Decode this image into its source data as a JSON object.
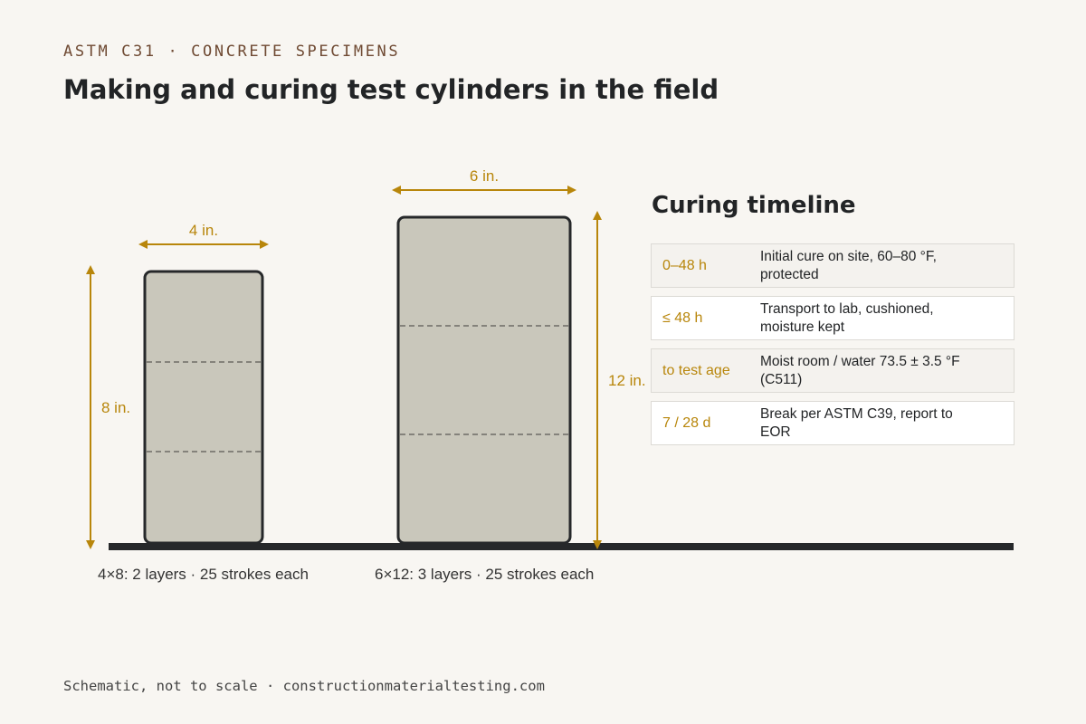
{
  "header": {
    "eyebrow": "ASTM C31 · CONCRETE SPECIMENS",
    "title": "Making and curing test cylinders in the field"
  },
  "cylinders": [
    {
      "id": "4x8",
      "diameter_label": "4 in.",
      "height_label": "8 in.",
      "caption": "4×8: 2 layers · 25 strokes each",
      "layers": 2
    },
    {
      "id": "6x12",
      "diameter_label": "6 in.",
      "height_label": "12 in.",
      "caption": "6×12: 3 layers · 25 strokes each",
      "layers": 3
    }
  ],
  "timeline": {
    "title": "Curing timeline",
    "rows": [
      {
        "time": "0–48 h",
        "desc": "Initial cure on site, 60–80 °F, protected"
      },
      {
        "time": "≤ 48 h",
        "desc": "Transport to lab, cushioned, moisture kept"
      },
      {
        "time": "to test age",
        "desc": "Moist room / water 73.5 ± 3.5 °F (C511)"
      },
      {
        "time": "7 / 28 d",
        "desc": "Break per ASTM C39, report to EOR"
      }
    ]
  },
  "footer": "Schematic, not to scale · constructionmaterialtesting.com",
  "colors": {
    "accent": "#b8860b",
    "concrete": "#c9c7bb",
    "outline": "#26282a",
    "eyebrow": "#6f4a33"
  }
}
